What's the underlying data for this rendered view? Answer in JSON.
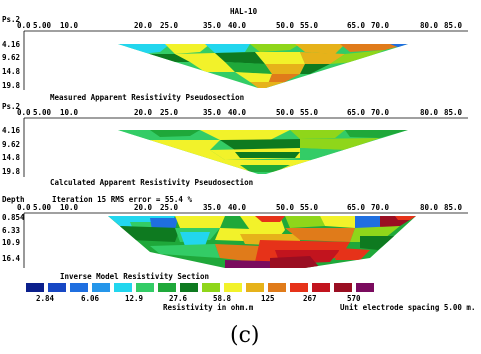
{
  "title": "HAL-10",
  "x_ticks": [
    "0.0",
    "5.00",
    "10.0",
    "20.0",
    "25.0",
    "35.0",
    "40.0",
    "50.0",
    "55.0",
    "65.0",
    "70.0",
    "80.0",
    "85.0"
  ],
  "sections": [
    {
      "id": "measured",
      "depth_label": "Ps.2",
      "depth_ticks": [
        "4.16",
        "9.62",
        "14.8",
        "19.8"
      ],
      "caption": "Measured Apparent Resistivity Pseudosection"
    },
    {
      "id": "calculated",
      "depth_label": "Ps.2",
      "depth_ticks": [
        "4.16",
        "9.62",
        "14.8",
        "19.8"
      ],
      "caption": "Calculated Apparent Resistivity Pseudosection"
    },
    {
      "id": "inverse",
      "depth_label": "Depth",
      "header_note": "Iteration 15 RMS error = 55.4 %",
      "depth_ticks": [
        "0.854",
        "6.33",
        "10.9",
        "16.4"
      ],
      "caption": "Inverse Model Resistivity Section"
    }
  ],
  "legend": {
    "colors": [
      "#0b1f8c",
      "#1747c4",
      "#1f6fe0",
      "#2596ea",
      "#22d6ee",
      "#33cc66",
      "#1fa83a",
      "#0e7a20",
      "#8fd61a",
      "#f2f22a",
      "#e6b21a",
      "#e07b1a",
      "#e63219",
      "#c2141e",
      "#9a0e22",
      "#7a0b5e"
    ],
    "labels": [
      "2.84",
      "6.06",
      "12.9",
      "27.6",
      "58.8",
      "125",
      "267",
      "570"
    ],
    "unit_label": "Resistivity in ohm.m",
    "electrode_note": "Unit electrode spacing 5.00 m."
  },
  "panel_letter": "(c)"
}
